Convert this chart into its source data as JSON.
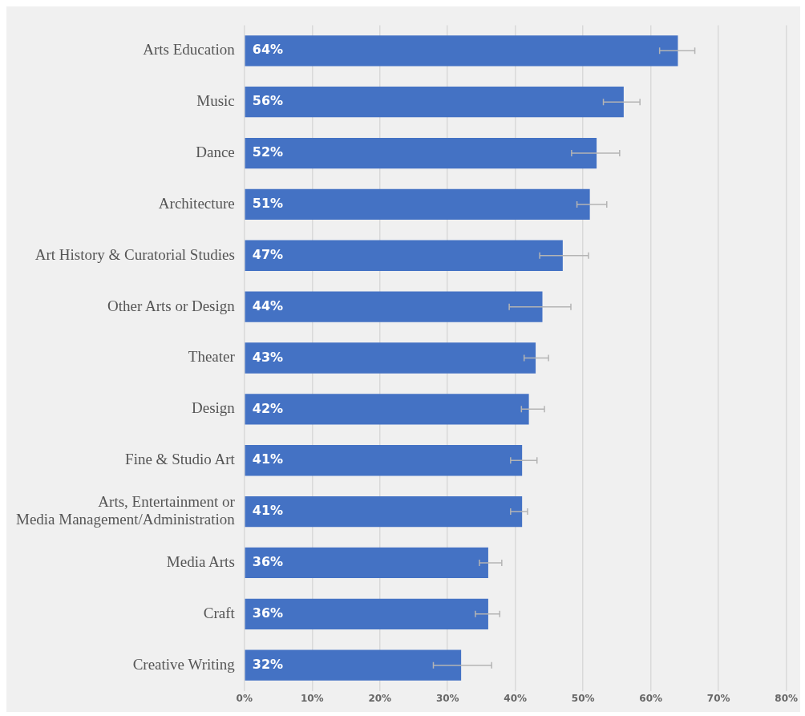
{
  "chart_data": {
    "type": "bar",
    "orientation": "horizontal",
    "categories": [
      "Arts Education",
      "Music",
      "Dance",
      "Architecture",
      "Art History & Curatorial Studies",
      "Other Arts or Design",
      "Theater",
      "Design",
      "Fine & Studio Art",
      "Arts, Entertainment or\nMedia Management/Administration",
      "Media Arts",
      "Craft",
      "Creative Writing"
    ],
    "values": [
      64,
      56,
      52,
      51,
      47,
      44,
      43,
      42,
      41,
      41,
      36,
      36,
      32
    ],
    "value_labels": [
      "64%",
      "56%",
      "52%",
      "51%",
      "47%",
      "44%",
      "43%",
      "42%",
      "41%",
      "41%",
      "36%",
      "36%",
      "32%"
    ],
    "errors": [
      [
        61.3,
        66.5
      ],
      [
        53.0,
        58.4
      ],
      [
        48.3,
        55.4
      ],
      [
        49.1,
        53.5
      ],
      [
        43.6,
        50.8
      ],
      [
        39.1,
        48.2
      ],
      [
        41.3,
        44.9
      ],
      [
        40.9,
        44.3
      ],
      [
        39.3,
        43.2
      ],
      [
        39.3,
        41.8
      ],
      [
        34.7,
        38.0
      ],
      [
        34.1,
        37.7
      ],
      [
        27.9,
        36.5
      ]
    ],
    "color": "#4472c4",
    "xlim": [
      0,
      80
    ],
    "xticks": [
      {
        "value": 0,
        "label": "0%"
      },
      {
        "value": 10,
        "label": "10%"
      },
      {
        "value": 20,
        "label": "20%"
      },
      {
        "value": 30,
        "label": "30%"
      },
      {
        "value": 40,
        "label": "40%"
      },
      {
        "value": 50,
        "label": "50%"
      },
      {
        "value": 60,
        "label": "60%"
      },
      {
        "value": 70,
        "label": "70%"
      },
      {
        "value": 80,
        "label": "80%"
      }
    ],
    "grid": "x",
    "legend": false
  }
}
